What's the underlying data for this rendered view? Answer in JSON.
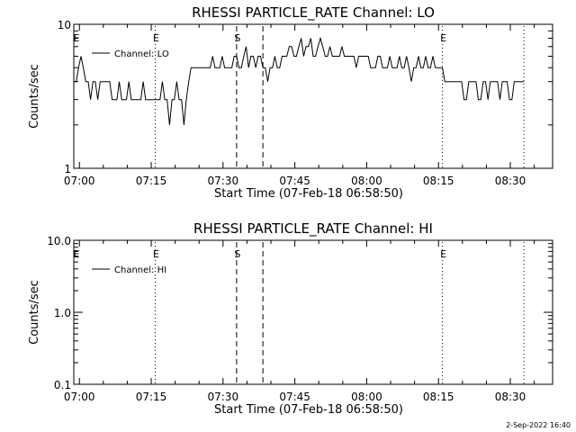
{
  "chart_data": [
    {
      "type": "line",
      "title": "RHESSI PARTICLE_RATE Channel: LO",
      "xlabel": "Start Time (07-Feb-18 06:58:50)",
      "ylabel": "Counts/sec",
      "xticks": [
        "07:00",
        "07:15",
        "07:30",
        "07:45",
        "08:00",
        "08:15",
        "08:30"
      ],
      "xlim_minutes_after_start": [
        0,
        100
      ],
      "yscale": "log",
      "ylim": [
        1,
        10
      ],
      "yticks": [
        "1",
        "10"
      ],
      "legend": {
        "position": "top-left",
        "label": "Channel: LO"
      },
      "markers": [
        {
          "text": "E",
          "minute": 17.0,
          "style": "dotted"
        },
        {
          "text": "S",
          "minute": 34.0,
          "style": "dashed"
        },
        {
          "text": "",
          "minute": 39.5,
          "style": "dashed"
        },
        {
          "text": "E",
          "minute": 77.0,
          "style": "dotted"
        },
        {
          "text": "",
          "minute": 94.0,
          "style": "dotted"
        }
      ],
      "series": [
        {
          "name": "Channel: LO",
          "x_minutes_after_start": [
            0,
            0.5,
            1,
            1.5,
            2,
            2.5,
            3,
            3.5,
            4,
            4.5,
            5,
            5.5,
            6,
            6.5,
            7,
            7.5,
            8,
            8.5,
            9,
            9.5,
            10,
            10.5,
            11,
            11.5,
            12,
            12.5,
            13,
            13.5,
            14,
            14.5,
            15,
            15.5,
            16,
            16.5,
            17,
            17.5,
            18,
            18.5,
            19,
            19.5,
            20,
            20.5,
            21,
            21.5,
            22,
            22.5,
            23,
            23.5,
            24,
            24.5,
            25,
            25.5,
            26,
            26.5,
            27,
            27.5,
            28,
            28.5,
            29,
            29.5,
            30,
            30.5,
            31,
            31.5,
            32,
            32.5,
            33,
            33.5,
            34,
            34.5,
            35,
            35.5,
            36,
            36.5,
            37,
            37.5,
            38,
            38.5,
            39,
            39.5,
            40,
            40.5,
            41,
            41.5,
            42,
            42.5,
            43,
            43.5,
            44,
            44.5,
            45,
            45.5,
            46,
            46.5,
            47,
            47.5,
            48,
            48.5,
            49,
            49.5,
            50,
            50.5,
            51,
            51.5,
            52,
            52.5,
            53,
            53.5,
            54,
            54.5,
            55,
            55.5,
            56,
            56.5,
            57,
            57.5,
            58,
            58.5,
            59,
            59.5,
            60,
            60.5,
            61,
            61.5,
            62,
            62.5,
            63,
            63.5,
            64,
            64.5,
            65,
            65.5,
            66,
            66.5,
            67,
            67.5,
            68,
            68.5,
            69,
            69.5,
            70,
            70.5,
            71,
            71.5,
            72,
            72.5,
            73,
            73.5,
            74,
            74.5,
            75,
            75.5,
            76,
            76.5,
            77,
            77.5,
            78,
            78.5,
            79,
            79.5,
            80,
            80.5,
            81,
            81.5,
            82,
            82.5,
            83,
            83.5,
            84,
            84.5,
            85,
            85.5,
            86,
            86.5,
            87,
            87.5,
            88,
            88.5,
            89,
            89.5,
            90,
            90.5,
            91,
            91.5,
            92,
            92.5,
            93,
            93.5,
            94
          ],
          "values": [
            4,
            4,
            5,
            6,
            5,
            4,
            4,
            3,
            4,
            4,
            3,
            4,
            4,
            4,
            4,
            4,
            3,
            3,
            3,
            4,
            3,
            3,
            3,
            4,
            3,
            3,
            3,
            3,
            3,
            4,
            3,
            3,
            3,
            3,
            3,
            3,
            3,
            4,
            3,
            3,
            2,
            3,
            3,
            4,
            3,
            3,
            2,
            3,
            4,
            5,
            5,
            5,
            5,
            5,
            5,
            5,
            5,
            5,
            6,
            5,
            5,
            5,
            6,
            5,
            5,
            5,
            5,
            6,
            6,
            5,
            5,
            6,
            7,
            5,
            6,
            6,
            5,
            6,
            6,
            5,
            5,
            4,
            5,
            5,
            6,
            5,
            5,
            6,
            6,
            6,
            7,
            7,
            6,
            6,
            7,
            8,
            6,
            7,
            7,
            8,
            6,
            6,
            7,
            8,
            7,
            6,
            6,
            7,
            6,
            6,
            6,
            6,
            7,
            6,
            6,
            6,
            6,
            6,
            5,
            6,
            6,
            6,
            6,
            6,
            5,
            5,
            5,
            6,
            6,
            5,
            5,
            5,
            6,
            5,
            5,
            5,
            6,
            5,
            5,
            6,
            5,
            4,
            5,
            5,
            6,
            5,
            5,
            6,
            5,
            5,
            6,
            5,
            5,
            5,
            5,
            4,
            4,
            4,
            4,
            4,
            4,
            4,
            4,
            3,
            3,
            4,
            4,
            4,
            4,
            3,
            3,
            4,
            4,
            3,
            4,
            4,
            4,
            4,
            3,
            4,
            4,
            4,
            3,
            3,
            4,
            4,
            4,
            4,
            4,
            4
          ]
        }
      ]
    },
    {
      "type": "line",
      "title": "RHESSI PARTICLE_RATE Channel: HI",
      "xlabel": "Start Time (07-Feb-18 06:58:50)",
      "ylabel": "Counts/sec",
      "xticks": [
        "07:00",
        "07:15",
        "07:30",
        "07:45",
        "08:00",
        "08:15",
        "08:30"
      ],
      "xlim_minutes_after_start": [
        0,
        100
      ],
      "yscale": "log",
      "ylim": [
        0.1,
        10
      ],
      "yticks": [
        "0.1",
        "1.0",
        "10.0"
      ],
      "legend": {
        "position": "top-left",
        "label": "Channel: HI"
      },
      "markers": [
        {
          "text": "E",
          "minute": 17.0,
          "style": "dotted"
        },
        {
          "text": "S",
          "minute": 34.0,
          "style": "dashed"
        },
        {
          "text": "",
          "minute": 39.5,
          "style": "dashed"
        },
        {
          "text": "E",
          "minute": 77.0,
          "style": "dotted"
        },
        {
          "text": "",
          "minute": 94.0,
          "style": "dotted"
        }
      ],
      "series": [
        {
          "name": "Channel: HI",
          "x_minutes_after_start": [],
          "values": []
        }
      ]
    }
  ],
  "footer": {
    "timestamp": "2-Sep-2022 16:40"
  }
}
